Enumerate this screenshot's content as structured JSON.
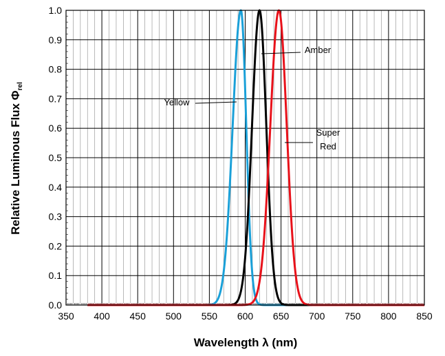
{
  "chart_data": {
    "type": "line",
    "title": "",
    "xlabel": "Wavelength λ (nm)",
    "ylabel_main": "Relative Luminous Flux Φ",
    "ylabel_sub": "rel",
    "xlim": [
      350,
      850
    ],
    "ylim": [
      0,
      1.0
    ],
    "x_ticks": [
      350,
      400,
      450,
      500,
      550,
      600,
      650,
      700,
      750,
      800,
      850
    ],
    "y_ticks": [
      "0.0",
      "0.1",
      "0.2",
      "0.3",
      "0.4",
      "0.5",
      "0.6",
      "0.7",
      "0.8",
      "0.9",
      "1.0"
    ],
    "grid": true,
    "series": [
      {
        "name": "Yellow",
        "color": "#1aa0d8",
        "peak": 594,
        "sigma_left": 11.5,
        "sigma_right": 7.5,
        "x_start": 380
      },
      {
        "name": "Amber",
        "color": "#000000",
        "peak": 620,
        "sigma_left": 10.5,
        "sigma_right": 9.5,
        "x_start": 380
      },
      {
        "name": "Super Red",
        "color": "#e8111a",
        "peak": 647,
        "sigma_left": 12,
        "sigma_right": 11,
        "x_start": 380
      }
    ],
    "annotations": [
      {
        "series": "Yellow",
        "lines": [
          "Yellow"
        ],
        "x": 585,
        "y": 0.685
      },
      {
        "series": "Amber",
        "lines": [
          "Amber"
        ],
        "x": 625,
        "y": 0.857
      },
      {
        "series": "Super Red",
        "lines": [
          "Super",
          "Red"
        ],
        "x": 653,
        "y": 0.555
      }
    ]
  }
}
